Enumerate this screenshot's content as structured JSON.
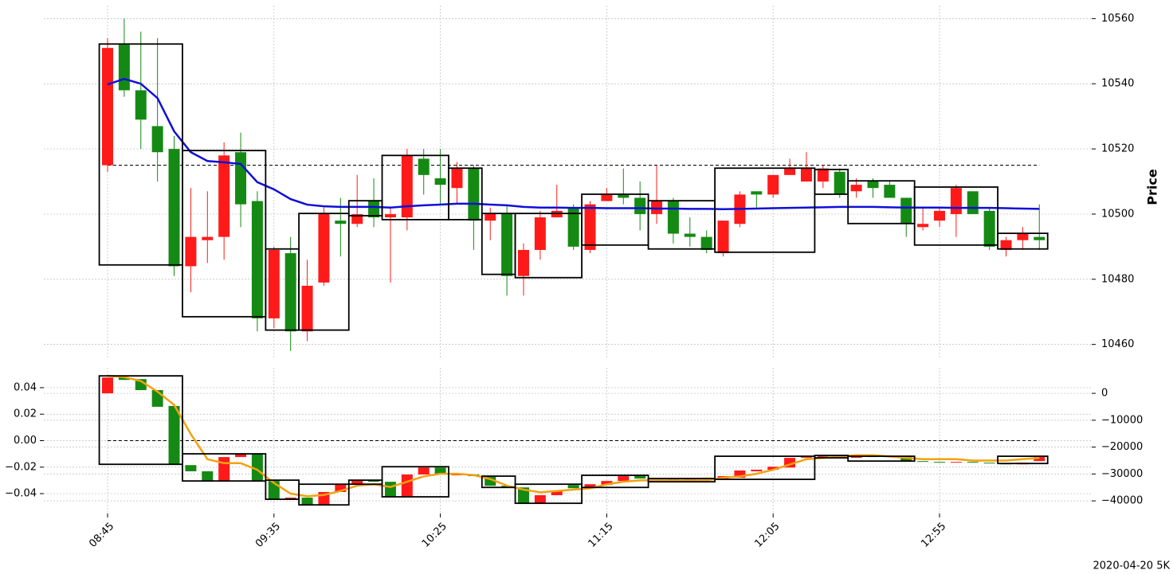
{
  "chart_data": [
    {
      "type": "candlestick",
      "ylabel": "Price",
      "yaxis_side": "right",
      "ylim": [
        10456,
        10564
      ],
      "yticks": [
        10460,
        10480,
        10500,
        10520,
        10540,
        10560
      ],
      "grid": true,
      "up_color": "#ff1a1a",
      "down_color": "#148a14",
      "open": [
        10515,
        10552,
        10538,
        10527,
        10520,
        10484,
        10492,
        10493,
        10519,
        10504,
        10468,
        10488,
        10464,
        10479,
        10498,
        10497,
        10504,
        10499,
        10499,
        10517,
        10511,
        10508,
        10514,
        10498,
        10500,
        10481,
        10489,
        10499,
        10502,
        10489,
        10504,
        10506,
        10505,
        10500,
        10504,
        10494,
        10493,
        10488,
        10497,
        10507,
        10506,
        10512,
        10510,
        10510,
        10513,
        10507,
        10510,
        10509,
        10505,
        10496,
        10498,
        10500,
        10507,
        10501,
        10489,
        10492,
        10493
      ],
      "high": [
        10554,
        10560,
        10556,
        10554,
        10524,
        10508,
        10507,
        10522,
        10525,
        10507,
        10490,
        10493,
        10486,
        10502,
        10505,
        10512,
        10511,
        10502,
        10520,
        10520,
        10520,
        10516,
        10515,
        10502,
        10503,
        10491,
        10501,
        10509,
        10503,
        10504,
        10508,
        10514,
        10510,
        10515,
        10505,
        10499,
        10495,
        10498,
        10507,
        10507,
        10512,
        10517,
        10519,
        10515,
        10514,
        10511,
        10511,
        10510,
        10505,
        10502,
        10502,
        10509,
        10507,
        10502,
        10493,
        10496,
        10503
      ],
      "low": [
        10513,
        10536,
        10520,
        10510,
        10481,
        10476,
        10485,
        10486,
        10496,
        10464,
        10465,
        10458,
        10461,
        10478,
        10487,
        10496,
        10496,
        10479,
        10495,
        10506,
        10503,
        10503,
        10489,
        10492,
        10475,
        10475,
        10486,
        10499,
        10489,
        10488,
        10504,
        10503,
        10495,
        10497,
        10491,
        10490,
        10488,
        10487,
        10496,
        10502,
        10505,
        10512,
        10510,
        10508,
        10505,
        10505,
        10505,
        10505,
        10493,
        10495,
        10496,
        10493,
        10500,
        10489,
        10487,
        10489,
        10489
      ],
      "close": [
        10551,
        10538,
        10529,
        10519,
        10484,
        10493,
        10493,
        10518,
        10503,
        10468,
        10489,
        10464,
        10478,
        10500,
        10497,
        10500,
        10499,
        10500,
        10518,
        10512,
        10509,
        10514,
        10498,
        10500,
        10481,
        10489,
        10499,
        10501,
        10490,
        10503,
        10506,
        10505,
        10500,
        10504,
        10494,
        10493,
        10489,
        10498,
        10506,
        10506,
        10512,
        10514,
        10514,
        10514,
        10506,
        10509,
        10508,
        10505,
        10497,
        10497,
        10501,
        10508,
        10500,
        10490,
        10492,
        10494,
        10492
      ],
      "lines": [
        {
          "color": "#0f0fd8",
          "values": [
            10539.8,
            10541.5,
            10540,
            10535.6,
            10525.4,
            10519,
            10516.3,
            10515.9,
            10515.4,
            10509.8,
            10507.6,
            10504.6,
            10502.9,
            10502.4,
            10502.2,
            10502.2,
            10502.2,
            10502,
            10502.4,
            10502.7,
            10502.9,
            10503.2,
            10503.2,
            10502.9,
            10502.7,
            10502.2,
            10502,
            10502,
            10501.9,
            10501.9,
            10501.8,
            10501.8,
            10501.8,
            10501.7,
            10501.7,
            10501.6,
            10501.6,
            10501.5,
            10501.6,
            10501.7,
            10501.8,
            10501.9,
            10502,
            10502.1,
            10502.2,
            10502.2,
            10502.2,
            10502.1,
            10502,
            10502,
            10502,
            10501.9,
            10501.9,
            10501.9,
            10501.8,
            10501.7,
            10501.6
          ]
        }
      ],
      "boxes": [
        {
          "start": 0,
          "end": 4,
          "top": 10552.2,
          "bottom": 10484.4
        },
        {
          "start": 5,
          "end": 9,
          "top": 10519.5,
          "bottom": 10468.5
        },
        {
          "start": 10,
          "end": 11,
          "top": 10489.3,
          "bottom": 10464.4
        },
        {
          "start": 12,
          "end": 14,
          "top": 10500.2,
          "bottom": 10464.4
        },
        {
          "start": 15,
          "end": 16,
          "top": 10504.1,
          "bottom": 10499.5
        },
        {
          "start": 17,
          "end": 20,
          "top": 10518,
          "bottom": 10498.3
        },
        {
          "start": 21,
          "end": 22,
          "top": 10514.1,
          "bottom": 10498.3
        },
        {
          "start": 23,
          "end": 24,
          "top": 10500.2,
          "bottom": 10481.5
        },
        {
          "start": 25,
          "end": 28,
          "top": 10500.2,
          "bottom": 10480.5
        },
        {
          "start": 29,
          "end": 32,
          "top": 10506.1,
          "bottom": 10490.5
        },
        {
          "start": 33,
          "end": 36,
          "top": 10504.1,
          "bottom": 10489.3
        },
        {
          "start": 37,
          "end": 42,
          "top": 10514.1,
          "bottom": 10488.3
        },
        {
          "start": 43,
          "end": 44,
          "top": 10513.7,
          "bottom": 10506.1
        },
        {
          "start": 45,
          "end": 48,
          "top": 10510.2,
          "bottom": 10497.1
        },
        {
          "start": 49,
          "end": 53,
          "top": 10508.3,
          "bottom": 10490.5
        },
        {
          "start": 54,
          "end": 56,
          "top": 10494.1,
          "bottom": 10489.3
        }
      ],
      "hline": 10515
    },
    {
      "type": "candlestick",
      "xlabel": "2020-04-20 5K",
      "categories": [
        "08:45",
        null,
        null,
        null,
        null,
        null,
        null,
        null,
        null,
        null,
        "09:35",
        null,
        null,
        null,
        null,
        null,
        null,
        null,
        null,
        null,
        "10:25",
        null,
        null,
        null,
        null,
        null,
        null,
        null,
        null,
        null,
        "11:15",
        null,
        null,
        null,
        null,
        null,
        null,
        null,
        null,
        null,
        "12:05",
        null,
        null,
        null,
        null,
        null,
        null,
        null,
        null,
        null,
        "12:55",
        null,
        null,
        null,
        null,
        null,
        null
      ],
      "ylim": [
        -0.055,
        0.055
      ],
      "yticks": [
        {
          "value": -0.04,
          "label": "−0.04"
        },
        {
          "value": -0.02,
          "label": "−0.02"
        },
        {
          "value": 0,
          "label": "0.00"
        },
        0.02,
        0.04
      ],
      "y2lim": [
        -44700,
        9500
      ],
      "y2ticks": [
        {
          "value": -40000,
          "label": "−40000"
        },
        {
          "value": -30000,
          "label": "−30000"
        },
        {
          "value": -20000,
          "label": "−20000"
        },
        {
          "value": -10000,
          "label": "−10000"
        },
        0
      ],
      "grid": true,
      "candle_axis": "y2",
      "boxes_axis": "y2",
      "up_color": "#ff1a1a",
      "down_color": "#148a14",
      "open": [
        0,
        5900,
        5300,
        1200,
        -4700,
        -26700,
        -29000,
        -32600,
        -23700,
        -22500,
        -32600,
        -39400,
        -38800,
        -41500,
        -36700,
        -33800,
        -32300,
        -32900,
        -38500,
        -30200,
        -27600,
        -30500,
        -30200,
        -30800,
        -34400,
        -35000,
        -40900,
        -37900,
        -34100,
        -35300,
        -34100,
        -32600,
        -30500,
        -31700,
        -32000,
        -32300,
        -32000,
        -32000,
        -31400,
        -29000,
        -28400,
        -27600,
        -24000,
        -23700,
        -23400,
        -24000,
        -23400,
        -23700,
        -23400,
        -25200,
        -25500,
        -25800,
        -25500,
        -25800,
        -26100,
        -26400,
        -25200
      ],
      "close": [
        5900,
        5000,
        1200,
        -5000,
        -26400,
        -29000,
        -32600,
        -23700,
        -22500,
        -32600,
        -39400,
        -38800,
        -41500,
        -36700,
        -33800,
        -32300,
        -32900,
        -38500,
        -30200,
        -27600,
        -30200,
        -30200,
        -30800,
        -34400,
        -35000,
        -40900,
        -37900,
        -36400,
        -35300,
        -33800,
        -32600,
        -30800,
        -31700,
        -32000,
        -32300,
        -32000,
        -31400,
        -30800,
        -28700,
        -28400,
        -27300,
        -24000,
        -23700,
        -23400,
        -24000,
        -23400,
        -23700,
        -23400,
        -25200,
        -25500,
        -25800,
        -25500,
        -25800,
        -26100,
        -26400,
        -25800,
        -23700
      ],
      "lines": [
        {
          "color": "#f2a20f",
          "values": [
            0.049,
            0.048,
            0.045,
            0.037,
            0.027,
            0.005,
            -0.014,
            -0.017,
            -0.017,
            -0.022,
            -0.032,
            -0.04,
            -0.042,
            -0.041,
            -0.038,
            -0.034,
            -0.033,
            -0.035,
            -0.031,
            -0.027,
            -0.025,
            -0.025,
            -0.026,
            -0.029,
            -0.034,
            -0.037,
            -0.039,
            -0.038,
            -0.037,
            -0.036,
            -0.033,
            -0.031,
            -0.03,
            -0.03,
            -0.03,
            -0.03,
            -0.03,
            -0.028,
            -0.027,
            -0.025,
            -0.022,
            -0.018,
            -0.014,
            -0.013,
            -0.012,
            -0.011,
            -0.011,
            -0.012,
            -0.013,
            -0.014,
            -0.014,
            -0.014,
            -0.015,
            -0.015,
            -0.015,
            -0.014,
            -0.013
          ]
        }
      ],
      "boxes": [
        {
          "start": 0,
          "end": 4,
          "top": 6500,
          "bottom": -26400
        },
        {
          "start": 5,
          "end": 9,
          "top": -22500,
          "bottom": -32600
        },
        {
          "start": 10,
          "end": 11,
          "top": -32300,
          "bottom": -39400
        },
        {
          "start": 12,
          "end": 14,
          "top": -33800,
          "bottom": -41500
        },
        {
          "start": 15,
          "end": 16,
          "top": -32300,
          "bottom": -33800
        },
        {
          "start": 17,
          "end": 20,
          "top": -27300,
          "bottom": -38500
        },
        {
          "start": 23,
          "end": 24,
          "top": -30800,
          "bottom": -35000
        },
        {
          "start": 25,
          "end": 28,
          "top": -33800,
          "bottom": -40900
        },
        {
          "start": 29,
          "end": 32,
          "top": -30500,
          "bottom": -35000
        },
        {
          "start": 33,
          "end": 36,
          "top": -31700,
          "bottom": -32900
        },
        {
          "start": 37,
          "end": 42,
          "top": -23400,
          "bottom": -32000
        },
        {
          "start": 43,
          "end": 44,
          "top": -23100,
          "bottom": -24000
        },
        {
          "start": 45,
          "end": 48,
          "top": -23400,
          "bottom": -25200
        },
        {
          "start": 54,
          "end": 56,
          "top": -23400,
          "bottom": -26100
        }
      ],
      "hline": 0
    }
  ]
}
